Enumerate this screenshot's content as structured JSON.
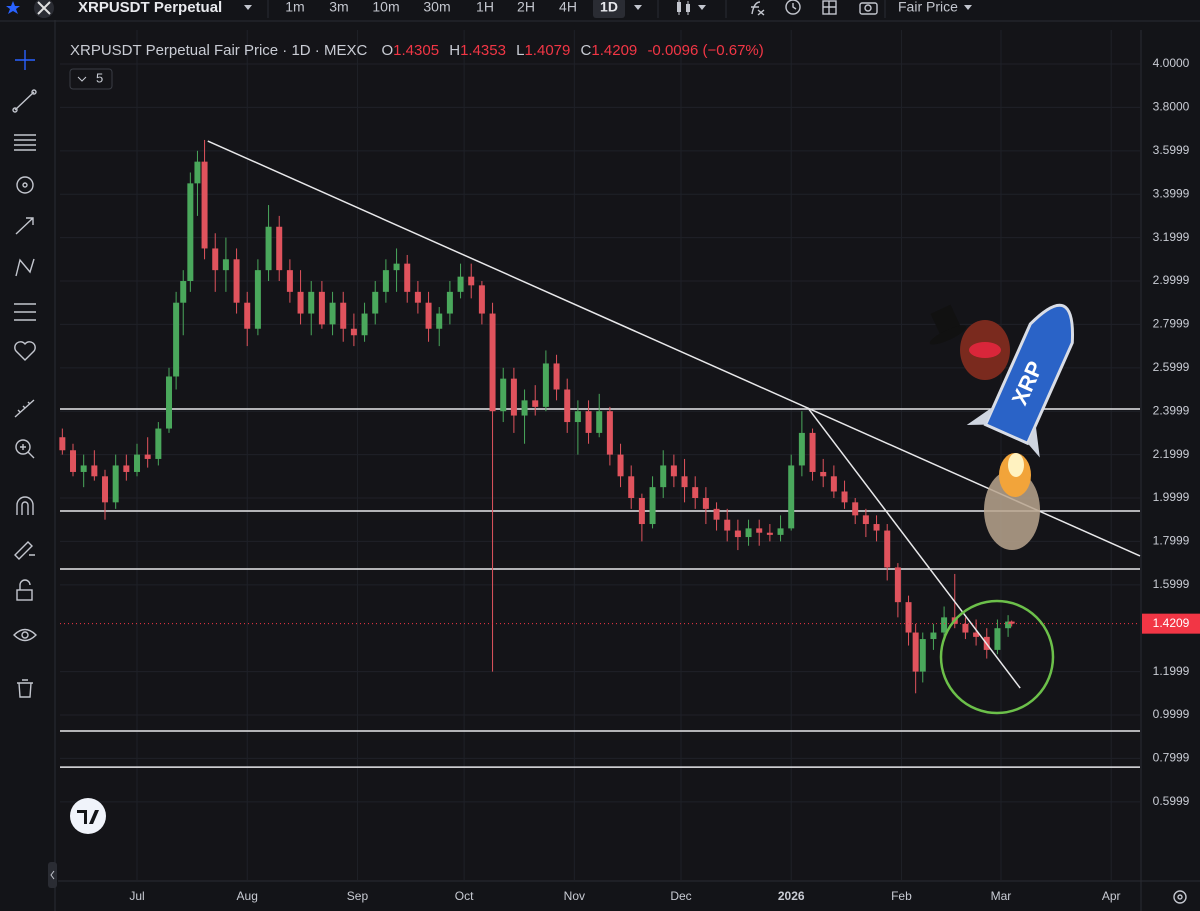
{
  "toolbar": {
    "symbol": "XRPUSDT Perpetual",
    "intervals": [
      "1m",
      "3m",
      "10m",
      "30m",
      "1H",
      "2H",
      "4H",
      "1D"
    ],
    "price_type": "Fair Price"
  },
  "legend": {
    "title": "XRPUSDT Perpetual Fair Price · 1D · MEXC",
    "ohlc_labels": [
      "O",
      "H",
      "L",
      "C"
    ],
    "change": "-0.0096 (−0.67%)",
    "hidden_count": "5"
  },
  "sticker": {
    "text": "XRP"
  },
  "chart_data": {
    "type": "candlestick",
    "xlim": [
      -21.66,
      282.1
    ],
    "xticks": [
      {
        "value": 0,
        "label": "Jul"
      },
      {
        "value": 31,
        "label": "Aug"
      },
      {
        "value": 62,
        "label": "Sep"
      },
      {
        "value": 92,
        "label": "Oct"
      },
      {
        "value": 123,
        "label": "Nov"
      },
      {
        "value": 153,
        "label": "Dec"
      },
      {
        "value": 184,
        "label": "2026"
      },
      {
        "value": 215,
        "label": "Feb"
      },
      {
        "value": 243,
        "label": "Mar"
      },
      {
        "value": 274,
        "label": "Apr"
      }
    ],
    "ylim": [
      0.2396,
      4.1567
    ],
    "yticks": [
      {
        "value": 4,
        "label": "4.0000"
      },
      {
        "value": 3.8,
        "label": "3.8000"
      },
      3.5999,
      3.3999,
      3.1999,
      2.9999,
      2.7999,
      2.5999,
      2.3999,
      2.1999,
      1.9999,
      1.7999,
      1.5999,
      1.1999,
      0.9999,
      0.7999,
      0.5999
    ],
    "grid": true,
    "series": [
      {
        "up_color": "#4aa85c",
        "down_color": "#e0535d",
        "x": [
          -21,
          -18,
          -15,
          -12,
          -9,
          -6,
          -3,
          0,
          3,
          6,
          9,
          11,
          13,
          15,
          17,
          19,
          22,
          25,
          28,
          31,
          34,
          37,
          40,
          43,
          46,
          49,
          52,
          55,
          58,
          61,
          64,
          67,
          70,
          73,
          76,
          79,
          82,
          85,
          88,
          91,
          94,
          97,
          100,
          103,
          106,
          109,
          112,
          115,
          118,
          121,
          124,
          127,
          130,
          133,
          136,
          139,
          142,
          145,
          148,
          151,
          154,
          157,
          160,
          163,
          166,
          169,
          172,
          175,
          178,
          181,
          184,
          187,
          190,
          193,
          196,
          199,
          202,
          205,
          208,
          211,
          214,
          217,
          219,
          221,
          224,
          227,
          230,
          233,
          236,
          239,
          242,
          245,
          246
        ],
        "ohlc": [
          [
            2.28,
            2.32,
            2.2,
            2.22
          ],
          [
            2.22,
            2.25,
            2.1,
            2.12
          ],
          [
            2.12,
            2.2,
            2.05,
            2.15
          ],
          [
            2.15,
            2.22,
            2.08,
            2.1
          ],
          [
            2.1,
            2.13,
            1.9,
            1.98
          ],
          [
            1.98,
            2.2,
            1.95,
            2.15
          ],
          [
            2.15,
            2.2,
            2.08,
            2.12
          ],
          [
            2.12,
            2.25,
            2.1,
            2.2
          ],
          [
            2.2,
            2.28,
            2.14,
            2.18
          ],
          [
            2.18,
            2.35,
            2.15,
            2.32
          ],
          [
            2.32,
            2.6,
            2.3,
            2.56
          ],
          [
            2.56,
            2.95,
            2.5,
            2.9
          ],
          [
            2.9,
            3.05,
            2.75,
            3.0
          ],
          [
            3.0,
            3.5,
            2.95,
            3.45
          ],
          [
            3.45,
            3.6,
            3.3,
            3.55
          ],
          [
            3.55,
            3.65,
            3.1,
            3.15
          ],
          [
            3.15,
            3.22,
            2.95,
            3.05
          ],
          [
            3.05,
            3.2,
            2.95,
            3.1
          ],
          [
            3.1,
            3.15,
            2.85,
            2.9
          ],
          [
            2.9,
            2.95,
            2.7,
            2.78
          ],
          [
            2.78,
            3.1,
            2.75,
            3.05
          ],
          [
            3.05,
            3.35,
            3.0,
            3.25
          ],
          [
            3.25,
            3.3,
            3.0,
            3.05
          ],
          [
            3.05,
            3.1,
            2.9,
            2.95
          ],
          [
            2.95,
            3.05,
            2.8,
            2.85
          ],
          [
            2.85,
            3.0,
            2.75,
            2.95
          ],
          [
            2.95,
            3.0,
            2.78,
            2.8
          ],
          [
            2.8,
            2.95,
            2.75,
            2.9
          ],
          [
            2.9,
            2.95,
            2.72,
            2.78
          ],
          [
            2.78,
            2.85,
            2.7,
            2.75
          ],
          [
            2.75,
            2.9,
            2.72,
            2.85
          ],
          [
            2.85,
            3.0,
            2.8,
            2.95
          ],
          [
            2.95,
            3.1,
            2.9,
            3.05
          ],
          [
            3.05,
            3.15,
            2.95,
            3.08
          ],
          [
            3.08,
            3.12,
            2.9,
            2.95
          ],
          [
            2.95,
            3.0,
            2.85,
            2.9
          ],
          [
            2.9,
            2.95,
            2.72,
            2.78
          ],
          [
            2.78,
            2.88,
            2.7,
            2.85
          ],
          [
            2.85,
            3.0,
            2.8,
            2.95
          ],
          [
            2.95,
            3.08,
            2.92,
            3.02
          ],
          [
            3.02,
            3.08,
            2.92,
            2.98
          ],
          [
            2.98,
            3.0,
            2.8,
            2.85
          ],
          [
            2.85,
            2.9,
            1.2,
            2.4
          ],
          [
            2.4,
            2.6,
            2.35,
            2.55
          ],
          [
            2.55,
            2.6,
            2.3,
            2.38
          ],
          [
            2.38,
            2.5,
            2.25,
            2.45
          ],
          [
            2.45,
            2.52,
            2.38,
            2.42
          ],
          [
            2.42,
            2.68,
            2.4,
            2.62
          ],
          [
            2.62,
            2.66,
            2.45,
            2.5
          ],
          [
            2.5,
            2.55,
            2.3,
            2.35
          ],
          [
            2.35,
            2.45,
            2.2,
            2.4
          ],
          [
            2.4,
            2.45,
            2.25,
            2.3
          ],
          [
            2.3,
            2.48,
            2.28,
            2.4
          ],
          [
            2.4,
            2.42,
            2.15,
            2.2
          ],
          [
            2.2,
            2.25,
            2.05,
            2.1
          ],
          [
            2.1,
            2.15,
            1.95,
            2.0
          ],
          [
            2.0,
            2.02,
            1.8,
            1.88
          ],
          [
            1.88,
            2.1,
            1.86,
            2.05
          ],
          [
            2.05,
            2.22,
            2.0,
            2.15
          ],
          [
            2.15,
            2.2,
            2.05,
            2.1
          ],
          [
            2.1,
            2.18,
            1.98,
            2.05
          ],
          [
            2.05,
            2.1,
            1.95,
            2.0
          ],
          [
            2.0,
            2.05,
            1.88,
            1.95
          ],
          [
            1.95,
            1.98,
            1.85,
            1.9
          ],
          [
            1.9,
            1.95,
            1.8,
            1.85
          ],
          [
            1.85,
            1.9,
            1.76,
            1.82
          ],
          [
            1.82,
            1.9,
            1.78,
            1.86
          ],
          [
            1.86,
            1.9,
            1.78,
            1.84
          ],
          [
            1.84,
            1.88,
            1.8,
            1.83
          ],
          [
            1.83,
            1.92,
            1.8,
            1.86
          ],
          [
            1.86,
            2.2,
            1.85,
            2.15
          ],
          [
            2.15,
            2.4,
            2.1,
            2.3
          ],
          [
            2.3,
            2.32,
            2.08,
            2.12
          ],
          [
            2.12,
            2.18,
            2.05,
            2.1
          ],
          [
            2.1,
            2.15,
            2.0,
            2.03
          ],
          [
            2.03,
            2.08,
            1.95,
            1.98
          ],
          [
            1.98,
            2.0,
            1.88,
            1.92
          ],
          [
            1.92,
            1.95,
            1.82,
            1.88
          ],
          [
            1.88,
            1.92,
            1.8,
            1.85
          ],
          [
            1.85,
            1.88,
            1.62,
            1.68
          ],
          [
            1.68,
            1.7,
            1.45,
            1.52
          ],
          [
            1.52,
            1.55,
            1.32,
            1.38
          ],
          [
            1.38,
            1.42,
            1.1,
            1.2
          ],
          [
            1.2,
            1.38,
            1.15,
            1.35
          ],
          [
            1.35,
            1.42,
            1.3,
            1.38
          ],
          [
            1.38,
            1.5,
            1.34,
            1.45
          ],
          [
            1.45,
            1.65,
            1.4,
            1.42
          ],
          [
            1.42,
            1.45,
            1.35,
            1.38
          ],
          [
            1.38,
            1.44,
            1.32,
            1.36
          ],
          [
            1.36,
            1.4,
            1.26,
            1.3
          ],
          [
            1.3,
            1.44,
            1.28,
            1.4
          ],
          [
            1.4,
            1.46,
            1.36,
            1.4305
          ],
          [
            1.4305,
            1.4353,
            1.4079,
            1.4209
          ]
        ]
      }
    ],
    "levels": [
      2.41,
      1.94,
      1.673,
      0.926,
      0.76
    ],
    "trendlines": [
      [
        19.9,
        3.645,
        282.1,
        1.733
      ],
      [
        188.7,
        2.415,
        248.4,
        1.124
      ]
    ],
    "level_color": "#e8e8ea",
    "last_price_color": "#f23645"
  }
}
